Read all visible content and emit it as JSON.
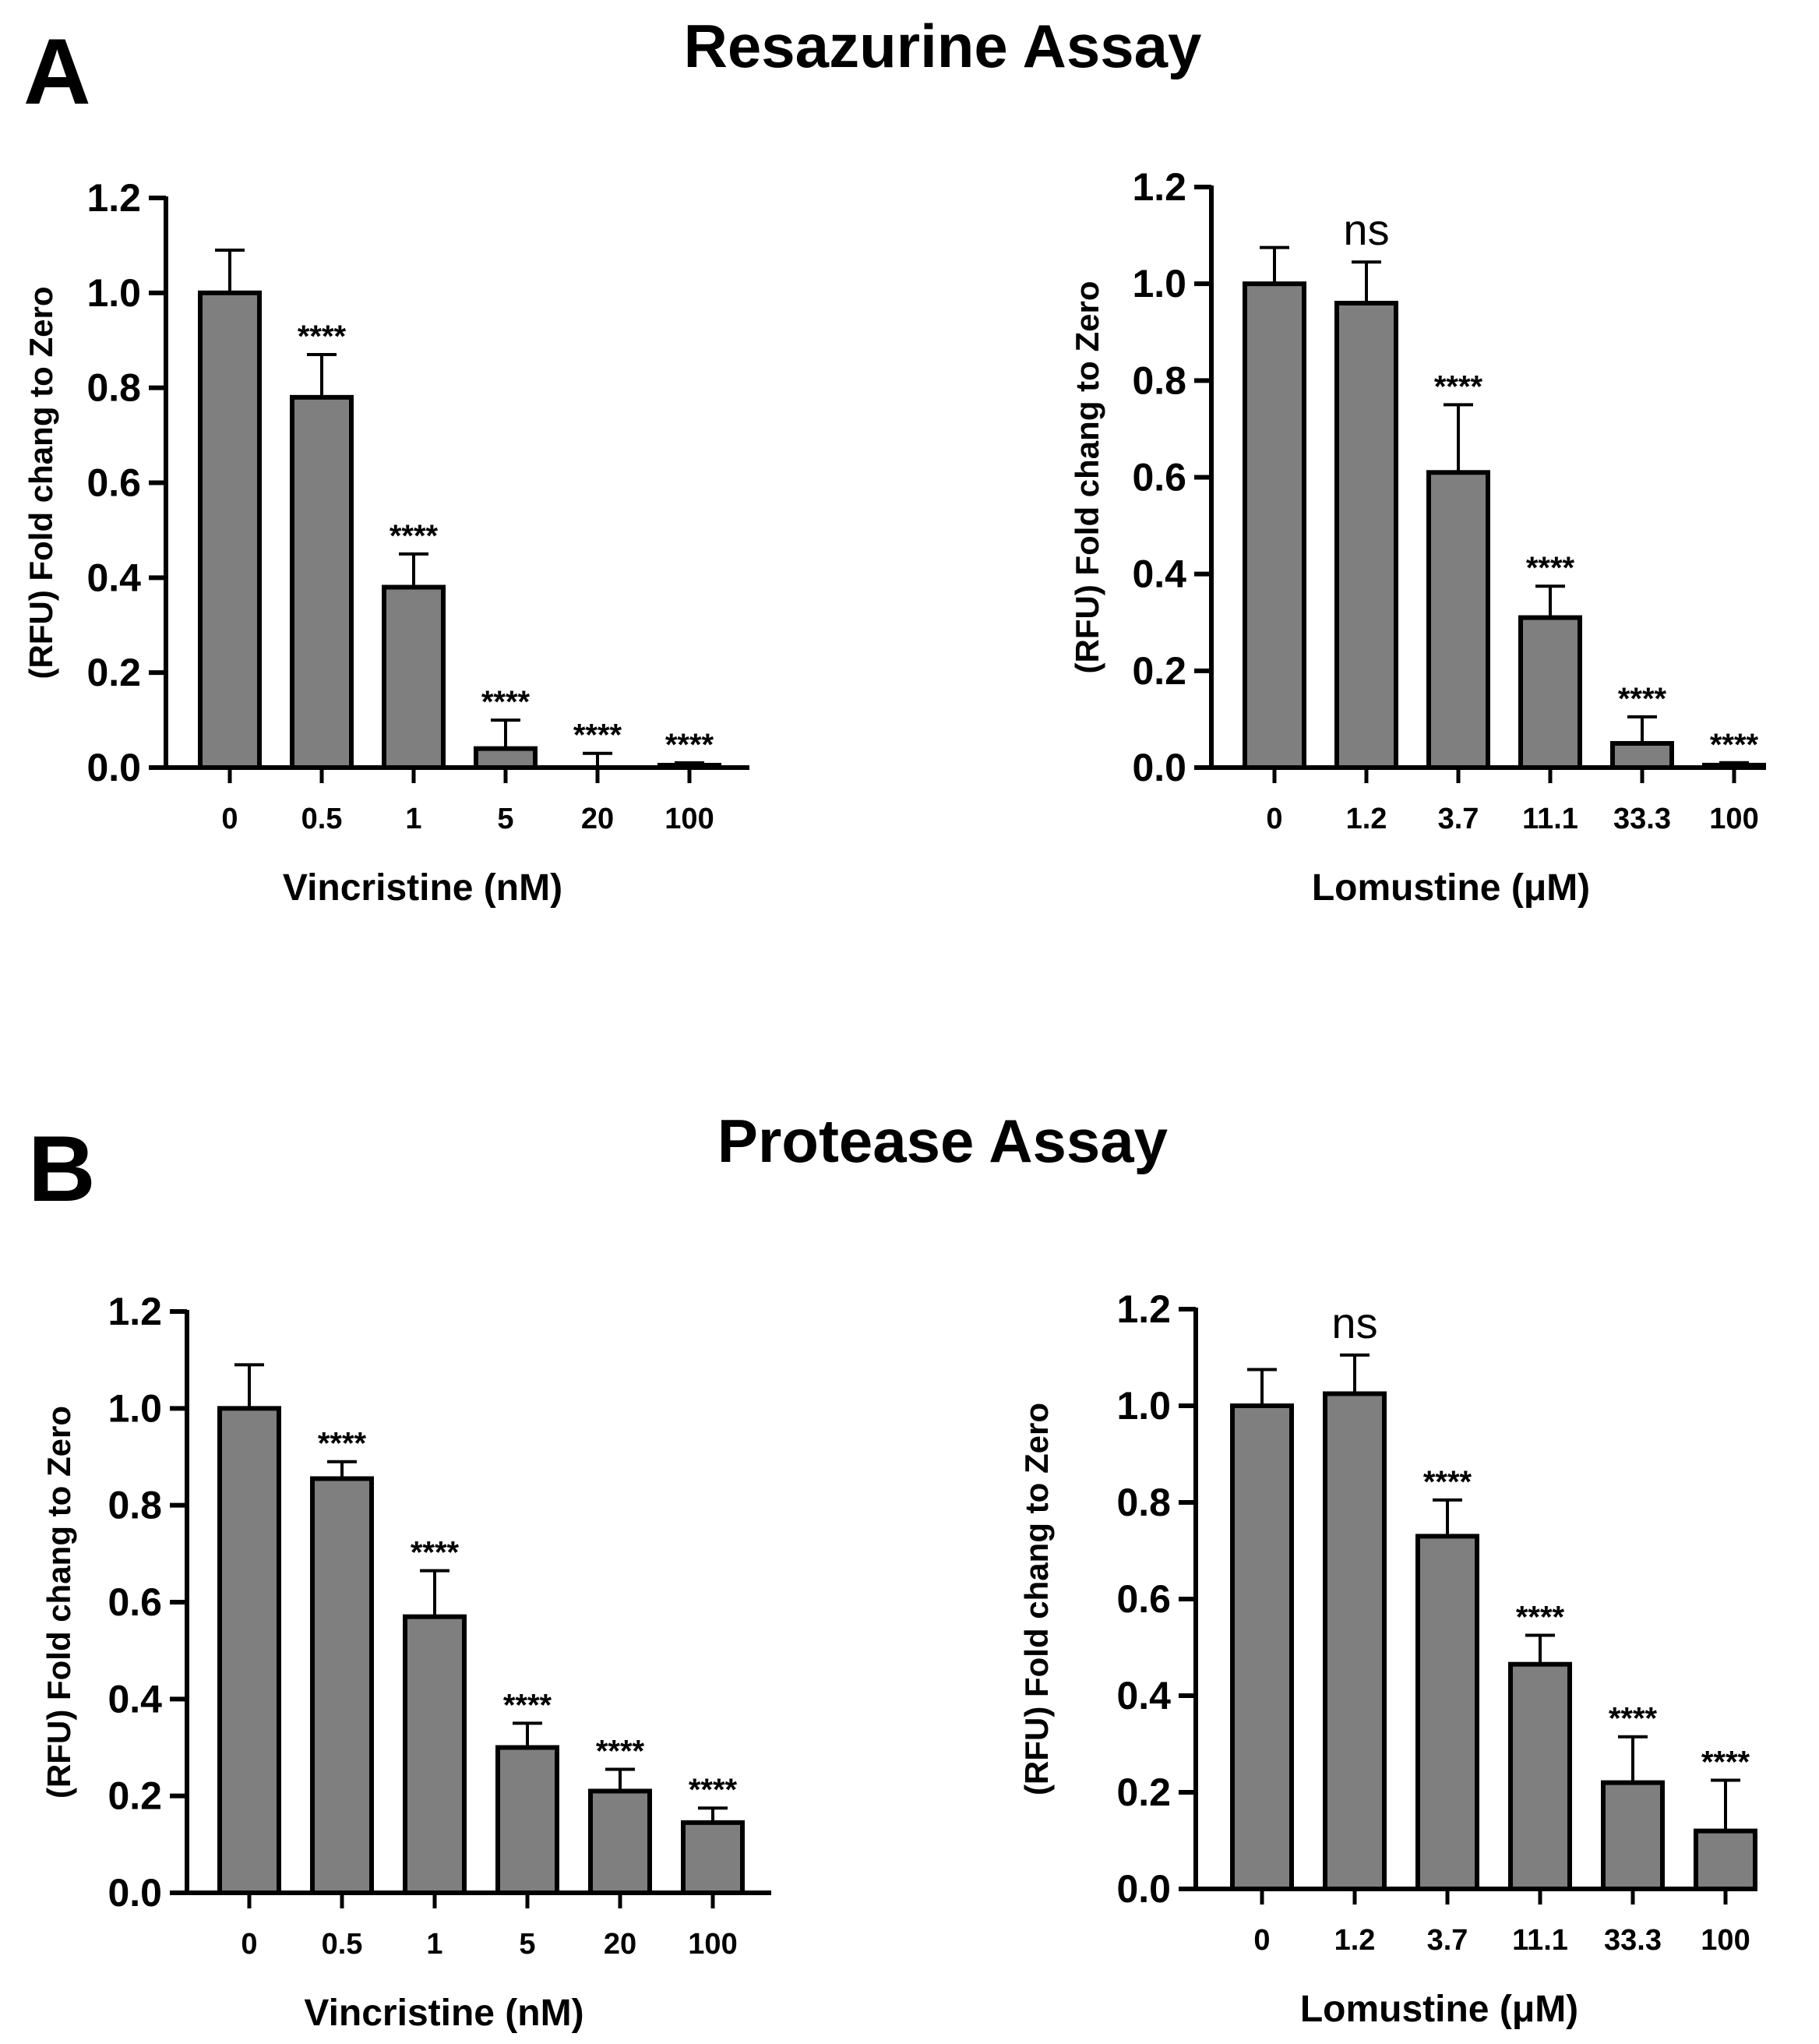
{
  "figure": {
    "panel_a": {
      "letter": "A",
      "title": "Resazurine Assay"
    },
    "panel_b": {
      "letter": "B",
      "title": "Protease Assay"
    }
  },
  "colors": {
    "bar_fill": "#7f7f7f",
    "stroke": "#000000",
    "background": "#ffffff"
  },
  "chart_data": [
    {
      "id": "a-vincristine",
      "type": "bar",
      "panel": "A",
      "title": "",
      "xlabel": "Vincristine (nM)",
      "ylabel": "(RFU) Fold chang to Zero",
      "ylim": [
        0,
        1.2
      ],
      "yticks": [
        "0.0",
        "0.2",
        "0.4",
        "0.6",
        "0.8",
        "1.0",
        "1.2"
      ],
      "categories": [
        "0",
        "0.5",
        "1",
        "5",
        "20",
        "100"
      ],
      "values": [
        1.0,
        0.78,
        0.38,
        0.04,
        0.0,
        0.005
      ],
      "errors": [
        0.09,
        0.09,
        0.07,
        0.06,
        0.03,
        0.005
      ],
      "significance": [
        "",
        "****",
        "****",
        "****",
        "****",
        "****"
      ]
    },
    {
      "id": "a-lomustine",
      "type": "bar",
      "panel": "A",
      "title": "",
      "xlabel": "Lomustine (μM)",
      "ylabel": "(RFU) Fold chang to Zero",
      "ylim": [
        0,
        1.2
      ],
      "yticks": [
        "0.0",
        "0.2",
        "0.4",
        "0.6",
        "0.8",
        "1.0",
        "1.2"
      ],
      "categories": [
        "0",
        "1.2",
        "3.7",
        "11.1",
        "33.3",
        "100"
      ],
      "values": [
        1.0,
        0.96,
        0.61,
        0.31,
        0.05,
        0.005
      ],
      "errors": [
        0.075,
        0.085,
        0.14,
        0.065,
        0.055,
        0.005
      ],
      "significance": [
        "",
        "ns",
        "****",
        "****",
        "****",
        "****"
      ]
    },
    {
      "id": "b-vincristine",
      "type": "bar",
      "panel": "B",
      "title": "",
      "xlabel": "Vincristine (nM)",
      "ylabel": "(RFU) Fold chang to Zero",
      "ylim": [
        0,
        1.2
      ],
      "yticks": [
        "0.0",
        "0.2",
        "0.4",
        "0.6",
        "0.8",
        "1.0",
        "1.2"
      ],
      "categories": [
        "0",
        "0.5",
        "1",
        "5",
        "20",
        "100"
      ],
      "values": [
        1.0,
        0.855,
        0.57,
        0.3,
        0.21,
        0.145
      ],
      "errors": [
        0.09,
        0.035,
        0.095,
        0.05,
        0.045,
        0.03
      ],
      "significance": [
        "",
        "****",
        "****",
        "****",
        "****",
        "****"
      ]
    },
    {
      "id": "b-lomustine",
      "type": "bar",
      "panel": "B",
      "title": "",
      "xlabel": "Lomustine (μM)",
      "ylabel": "(RFU) Fold chang to Zero",
      "ylim": [
        0,
        1.2
      ],
      "yticks": [
        "0.0",
        "0.2",
        "0.4",
        "0.6",
        "0.8",
        "1.0",
        "1.2"
      ],
      "categories": [
        "0",
        "1.2",
        "3.7",
        "11.1",
        "33.3",
        "100"
      ],
      "values": [
        1.0,
        1.025,
        0.73,
        0.465,
        0.22,
        0.12
      ],
      "errors": [
        0.075,
        0.08,
        0.075,
        0.06,
        0.095,
        0.105
      ],
      "significance": [
        "",
        "ns",
        "****",
        "****",
        "****",
        "****"
      ]
    }
  ]
}
